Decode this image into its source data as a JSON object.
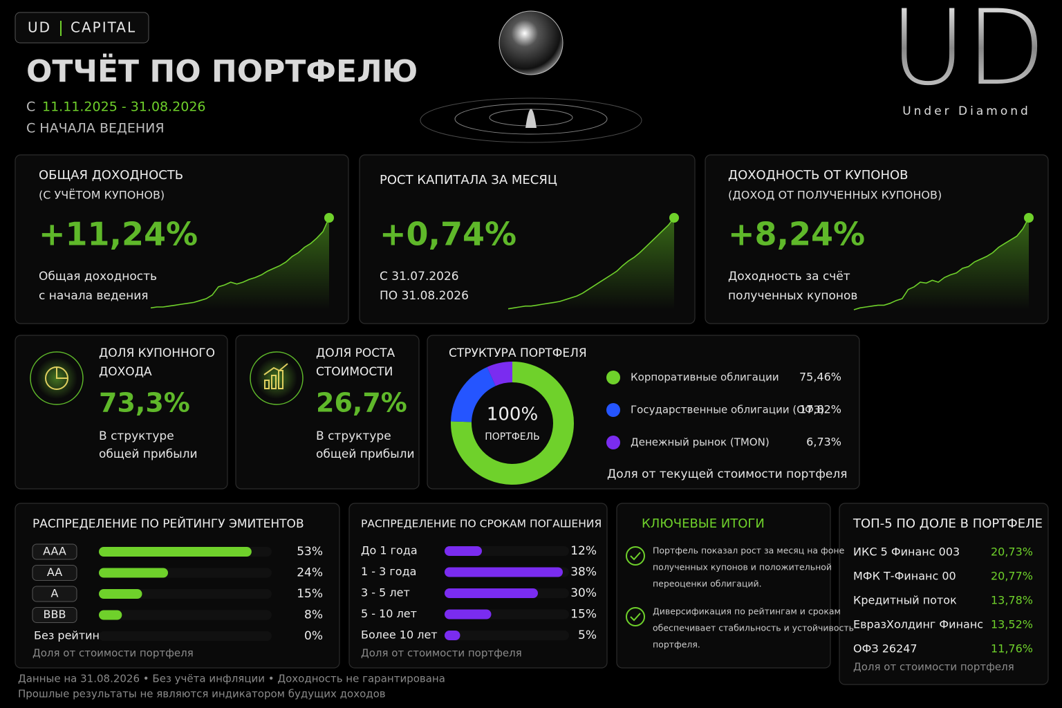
{
  "header": {
    "brand": [
      "UD",
      "CAPITAL"
    ],
    "title": "ОТЧЁТ ПО ПОРТФЕЛЮ",
    "period_prefix": "С",
    "period": "11.11.2025 - 31.08.2026",
    "subtitle": "С НАЧАЛА ВЕДЕНИЯ",
    "logo": "UD",
    "logo_caption": "Under Diamond"
  },
  "kpis": [
    {
      "title": "ОБЩАЯ ДОХОДНОСТЬ",
      "subtitle": "(С УЧЁТОМ КУПОНОВ)",
      "value": "+11,24%",
      "description": [
        "Общая доходность",
        "с начала ведения"
      ],
      "color": "#6fd12b",
      "sparkline": [
        2,
        3,
        3,
        4,
        5,
        6,
        7,
        8,
        10,
        12,
        16,
        25,
        27,
        30,
        28,
        30,
        33,
        35,
        38,
        42,
        45,
        48,
        52,
        58,
        62,
        68,
        72,
        78,
        85,
        100
      ]
    },
    {
      "title": "РОСТ КАПИТАЛА ЗА МЕСЯЦ",
      "value": "+0,74%",
      "description": [
        "С 31.07.2026",
        "ПО 31.08.2026"
      ],
      "color": "#6fd12b",
      "sparkline": [
        1,
        2,
        3,
        4,
        4,
        5,
        6,
        7,
        8,
        9,
        11,
        13,
        15,
        18,
        22,
        26,
        30,
        34,
        38,
        42,
        48,
        53,
        57,
        62,
        68,
        74,
        80,
        86,
        92,
        100
      ]
    },
    {
      "title": "ДОХОДНОСТЬ ОТ КУПОНОВ",
      "subtitle": "(ДОХОД ОТ ПОЛУЧЕННЫХ КУПОНОВ)",
      "value": "+8,24%",
      "description": [
        "Доходность за счёт",
        "полученных купонов"
      ],
      "color": "#6fd12b",
      "sparkline": [
        0,
        2,
        3,
        4,
        5,
        5,
        7,
        10,
        12,
        22,
        25,
        30,
        29,
        32,
        30,
        35,
        38,
        40,
        45,
        47,
        52,
        55,
        58,
        62,
        68,
        72,
        76,
        80,
        88,
        100
      ]
    }
  ],
  "shares": [
    {
      "title": [
        "ДОЛЯ КУПОННОГО",
        "ДОХОДА"
      ],
      "value": "73,3%",
      "description": [
        "В структуре",
        "общей прибыли"
      ]
    },
    {
      "title": [
        "ДОЛЯ РОСТА",
        "СТОИМОСТИ"
      ],
      "value": "26,7%",
      "description": [
        "В структуре",
        "общей прибыли"
      ]
    }
  ],
  "structure": {
    "type": "donut",
    "title": "СТРУКТУРА ПОРТФЕЛЯ",
    "center_value": "100%",
    "center_label": "ПОРТФЕЛЬ",
    "categories": [
      "Корпоративные облигации",
      "Государственные облигации (ОФЗ)",
      "Денежный рынок (TMON)"
    ],
    "values": [
      75.46,
      17.82,
      6.73
    ],
    "value_labels": [
      "75,46%",
      "17,82%",
      "6,73%"
    ],
    "colors": [
      "#6fd12b",
      "#2555ff",
      "#7a2cf0"
    ],
    "note": "Доля от текущей стоимости портфеля"
  },
  "rating": {
    "type": "hbar",
    "title": "РАСПРЕДЕЛЕНИЕ ПО РЕЙТИНГУ ЭМИТЕНТОВ",
    "categories": [
      "AAA",
      "AA",
      "A",
      "BBB",
      "Без рейтинга"
    ],
    "values": [
      53,
      24,
      15,
      8,
      0
    ],
    "value_labels": [
      "53%",
      "24%",
      "15%",
      "8%",
      "0%"
    ],
    "xlim": [
      0,
      60
    ],
    "color": "#6fd12b",
    "note": "Доля от стоимости портфеля"
  },
  "maturity": {
    "type": "hbar",
    "title": "РАСПРЕДЕЛЕНИЕ ПО СРОКАМ ПОГАШЕНИЯ",
    "categories": [
      "До 1 года",
      "1 - 3 года",
      "3 - 5 лет",
      "5 - 10 лет",
      "Более 10 лет"
    ],
    "values": [
      12,
      38,
      30,
      15,
      5
    ],
    "value_labels": [
      "12%",
      "38%",
      "30%",
      "15%",
      "5%"
    ],
    "xlim": [
      0,
      40
    ],
    "color": "#7a2cf0",
    "note": "Доля от стоимости портфеля"
  },
  "summary": {
    "title": "КЛЮЧЕВЫЕ ИТОГИ",
    "items": [
      [
        "Портфель показал рост за месяц на фоне",
        "полученных купонов и положительной",
        "переоценки облигаций."
      ],
      [
        "Диверсификация по рейтингам и срокам",
        "обеспечивает стабильность и устойчивость",
        "портфеля."
      ]
    ]
  },
  "top5": {
    "title": "ТОП-5 ПО ДОЛЕ В ПОРТФЕЛЕ",
    "rows": [
      [
        "ИКС 5 Финанс 003",
        "20,73%"
      ],
      [
        "МФК Т-Финанс 00",
        "20,77%"
      ],
      [
        "Кредитный поток",
        "13,78%"
      ],
      [
        "ЕвразХолдинг Финанс",
        "13,52%"
      ],
      [
        "ОФЗ 26247",
        "11,76%"
      ]
    ],
    "note": "Доля от стоимости портфеля"
  },
  "footer": [
    "Данные на 31.08.2026  •  Без учёта инфляции  •  Доходность не гарантирована",
    "Прошлые результаты не являются индикатором будущих доходов"
  ]
}
